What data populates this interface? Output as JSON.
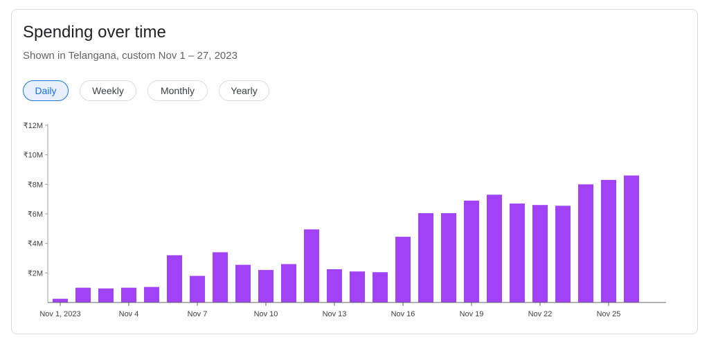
{
  "header": {
    "title": "Spending over time",
    "subtitle": "Shown in Telangana, custom Nov 1 – 27, 2023"
  },
  "tabs": [
    {
      "label": "Daily",
      "active": true
    },
    {
      "label": "Weekly",
      "active": false
    },
    {
      "label": "Monthly",
      "active": false
    },
    {
      "label": "Yearly",
      "active": false
    }
  ],
  "colors": {
    "bar": "#a142f4",
    "accent": "#1a73e8"
  },
  "chart_data": {
    "type": "bar",
    "title": "",
    "xlabel": "",
    "ylabel": "",
    "ylim": [
      0,
      12
    ],
    "y_unit": "₹M",
    "yticks": [
      {
        "value": 2,
        "label": "₹2M"
      },
      {
        "value": 4,
        "label": "₹4M"
      },
      {
        "value": 6,
        "label": "₹6M"
      },
      {
        "value": 8,
        "label": "₹8M"
      },
      {
        "value": 10,
        "label": "₹10M"
      },
      {
        "value": 12,
        "label": "₹12M"
      }
    ],
    "categories": [
      "Nov 1, 2023",
      "Nov 2",
      "Nov 3",
      "Nov 4",
      "Nov 5",
      "Nov 6",
      "Nov 7",
      "Nov 8",
      "Nov 9",
      "Nov 10",
      "Nov 11",
      "Nov 12",
      "Nov 13",
      "Nov 14",
      "Nov 15",
      "Nov 16",
      "Nov 17",
      "Nov 18",
      "Nov 19",
      "Nov 20",
      "Nov 21",
      "Nov 22",
      "Nov 23",
      "Nov 24",
      "Nov 25",
      "Nov 26"
    ],
    "xtick_labels": [
      {
        "index": 0,
        "label": "Nov 1, 2023"
      },
      {
        "index": 3,
        "label": "Nov 4"
      },
      {
        "index": 6,
        "label": "Nov 7"
      },
      {
        "index": 9,
        "label": "Nov 10"
      },
      {
        "index": 12,
        "label": "Nov 13"
      },
      {
        "index": 15,
        "label": "Nov 16"
      },
      {
        "index": 18,
        "label": "Nov 19"
      },
      {
        "index": 21,
        "label": "Nov 22"
      },
      {
        "index": 24,
        "label": "Nov 25"
      }
    ],
    "values": [
      0.25,
      1.0,
      0.95,
      1.0,
      1.05,
      3.2,
      1.8,
      3.4,
      2.55,
      2.2,
      2.6,
      4.95,
      2.25,
      2.1,
      2.05,
      4.45,
      6.05,
      6.05,
      6.9,
      7.3,
      6.7,
      6.6,
      6.55,
      8.0,
      8.3,
      8.6
    ],
    "grid": false
  }
}
